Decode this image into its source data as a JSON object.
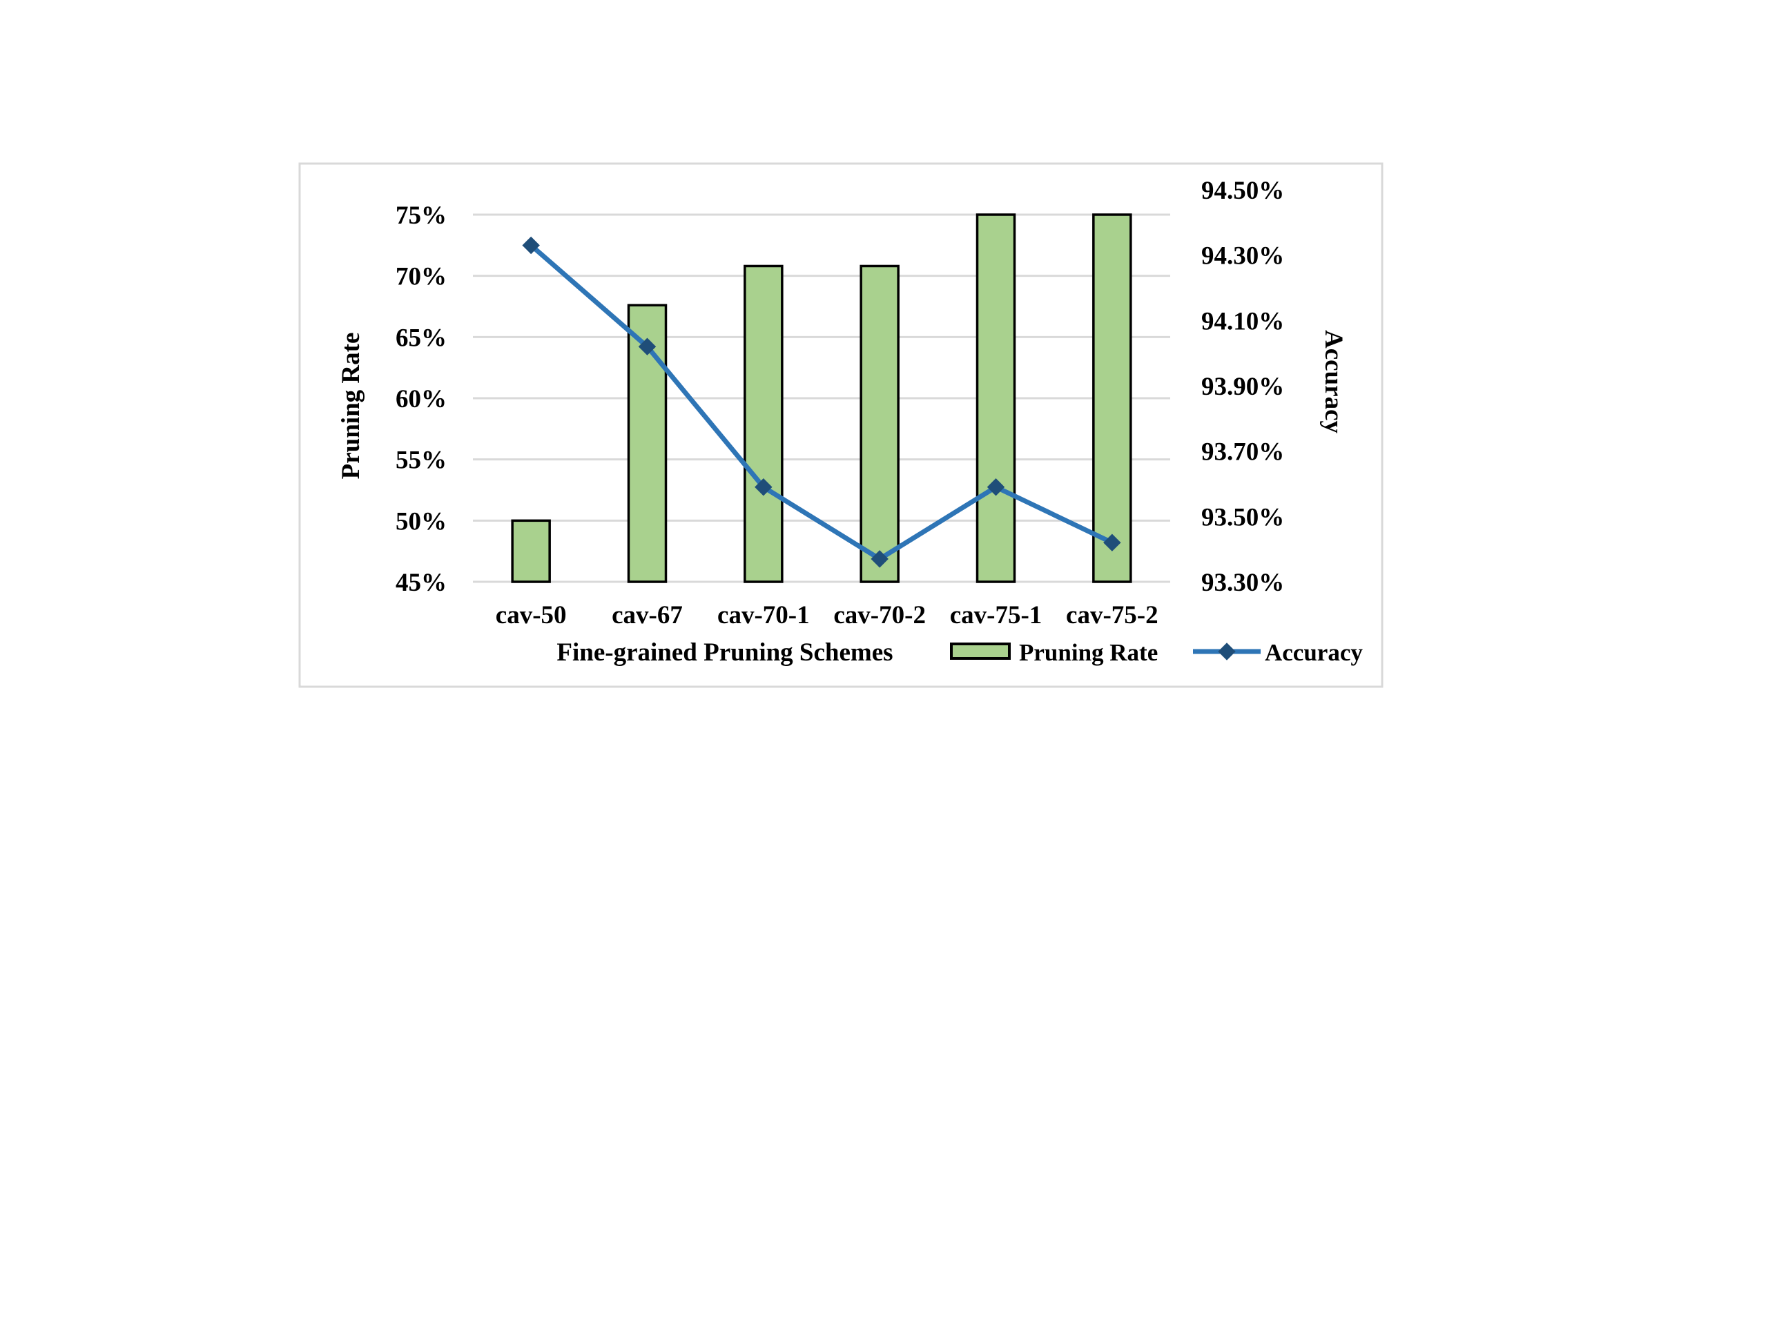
{
  "chart_data": {
    "type": "bar",
    "title": "",
    "xlabel": "Fine-grained Pruning Schemes",
    "ylabel": "Pruning Rate",
    "y2label": "Accuracy",
    "categories": [
      "cav-50",
      "cav-67",
      "cav-70-1",
      "cav-70-2",
      "cav-75-1",
      "cav-75-2"
    ],
    "ylim": [
      45,
      75
    ],
    "y_ticks": [
      "45%",
      "50%",
      "55%",
      "60%",
      "65%",
      "70%",
      "75%"
    ],
    "y2lim": [
      93.3,
      94.5
    ],
    "y2_ticks": [
      "93.30%",
      "93.50%",
      "93.70%",
      "93.90%",
      "94.10%",
      "94.30%",
      "94.50%"
    ],
    "series": [
      {
        "name": "Pruning Rate",
        "kind": "bar",
        "axis": "left",
        "values": [
          50,
          67.6,
          70.8,
          70.8,
          75,
          75
        ]
      },
      {
        "name": "Accuracy",
        "kind": "line",
        "axis": "right",
        "values": [
          94.33,
          94.02,
          93.59,
          93.37,
          93.59,
          93.42
        ]
      }
    ],
    "grid": true,
    "legend_position": "bottom",
    "colors": {
      "bar_fill": "#a9d18e",
      "bar_stroke": "#000000",
      "line": "#2e75b6",
      "marker": "#1f4e79",
      "grid": "#d9d9d9",
      "frame": "#d9d9d9"
    }
  }
}
